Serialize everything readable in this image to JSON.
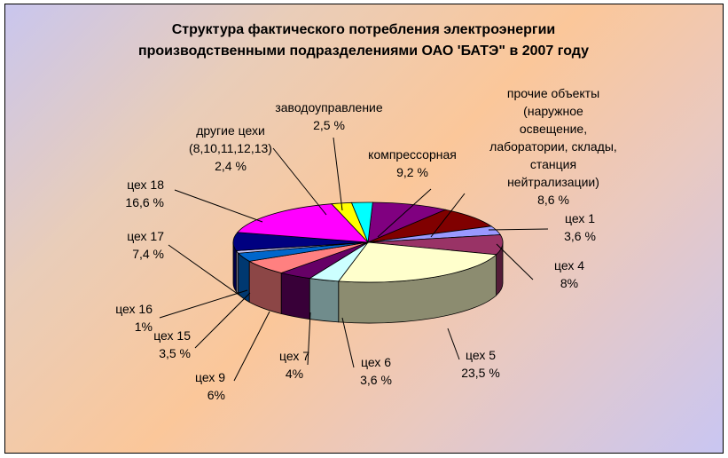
{
  "chart_data": {
    "type": "pie",
    "title_lines": [
      "Структура фактического потребления электроэнергии",
      "производственными подразделениями ОАО 'БАТЭ\" в 2007 году"
    ],
    "slices": [
      {
        "label_lines": [
          "компрессорная",
          "9,2 %"
        ],
        "value": 9.2,
        "color": "#800080"
      },
      {
        "label_lines": [
          "прочие объекты",
          "(наружное",
          "освещение,",
          "лаборатории, склады,",
          "станция",
          "нейтрализации)",
          "8,6 %"
        ],
        "value": 8.6,
        "color": "#800000"
      },
      {
        "label_lines": [
          "цех  1",
          "3,6 %"
        ],
        "value": 3.6,
        "color": "#9999ff"
      },
      {
        "label_lines": [
          "цех  4",
          "8%"
        ],
        "value": 8.0,
        "color": "#993366"
      },
      {
        "label_lines": [
          "цех  5",
          "23,5 %"
        ],
        "value": 23.5,
        "color": "#ffffcc"
      },
      {
        "label_lines": [
          "цех  6",
          "3,6 %"
        ],
        "value": 3.6,
        "color": "#ccffff"
      },
      {
        "label_lines": [
          "цех  7",
          "4%"
        ],
        "value": 4.0,
        "color": "#660066"
      },
      {
        "label_lines": [
          "цех  9",
          "6%"
        ],
        "value": 6.0,
        "color": "#ff8080"
      },
      {
        "label_lines": [
          "цех  15",
          "3,5 %"
        ],
        "value": 3.5,
        "color": "#0066cc"
      },
      {
        "label_lines": [
          "цех  16",
          "1%"
        ],
        "value": 1.0,
        "color": "#ccccff"
      },
      {
        "label_lines": [
          "цех  17",
          "7,4 %"
        ],
        "value": 7.4,
        "color": "#000080"
      },
      {
        "label_lines": [
          "цех 18",
          "16,6 %"
        ],
        "value": 16.6,
        "color": "#ff00ff"
      },
      {
        "label_lines": [
          "другие цехи",
          "(8,10,11,12,13)",
          "2,4 %"
        ],
        "value": 2.4,
        "color": "#ffff00"
      },
      {
        "label_lines": [
          "заводоуправление",
          "2,5 %"
        ],
        "value": 2.5,
        "color": "#00ffff"
      }
    ]
  }
}
